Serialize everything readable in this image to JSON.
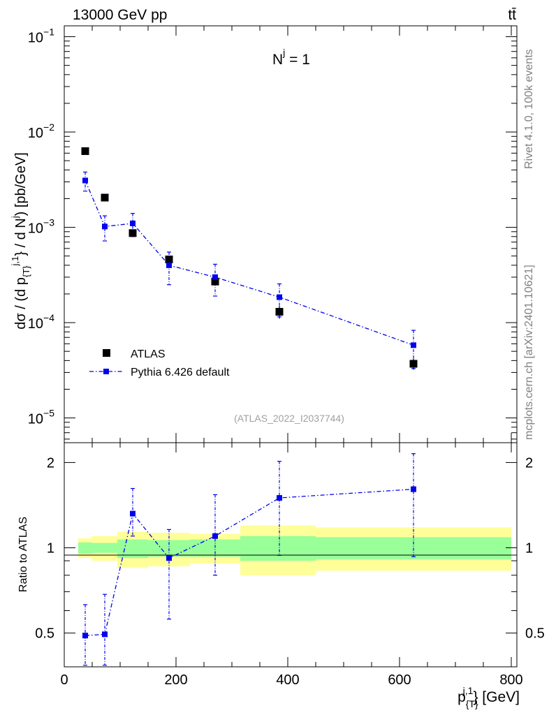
{
  "header": {
    "left": "13000 GeV pp",
    "right": "tt̄"
  },
  "side_labels": {
    "rivet": "Rivet 4.1.0,  100k events",
    "mcplots": "mcplots.cern.ch [arXiv:2401.10621]"
  },
  "chart_data": [
    {
      "type": "scatter",
      "panel": "main",
      "annotation": "N^j = 1",
      "watermark": "(ATLAS_2022_I2037744)",
      "ylabel": "dσ / (d p_{T}^{j,1} / d N^{j}) [pb/GeV]",
      "yscale": "log",
      "ylim": [
        5.5e-06,
        0.13
      ],
      "xlim": [
        0,
        810
      ],
      "ytick_labels": [
        "10^-1",
        "10^-2",
        "10^-3",
        "10^-4",
        "10^-5"
      ],
      "ytick_values": [
        0.1,
        0.01,
        0.001,
        0.0001,
        1e-05
      ],
      "legend": {
        "position": "lower-left",
        "entries": [
          "ATLAS",
          "Pythia 6.426 default"
        ]
      },
      "series": [
        {
          "name": "ATLAS",
          "color": "#000000",
          "x": [
            37.5,
            72.5,
            122.5,
            187.5,
            270,
            385,
            625
          ],
          "y": [
            0.0063,
            0.00205,
            0.00087,
            0.00046,
            0.00027,
            0.00013,
            3.7e-05
          ],
          "yerr_lo": [
            0.0004,
            0.00012,
            5e-05,
            3e-05,
            2e-05,
            2e-05,
            5e-06
          ],
          "yerr_hi": [
            0.0004,
            0.00012,
            5e-05,
            3e-05,
            2e-05,
            2e-05,
            5e-06
          ]
        },
        {
          "name": "Pythia 6.426 default",
          "color": "#0000ee",
          "x": [
            37.5,
            72.5,
            122.5,
            187.5,
            270,
            385,
            625
          ],
          "y": [
            0.0031,
            0.00102,
            0.0011,
            0.0004,
            0.0003,
            0.000185,
            5.8e-05
          ],
          "yerr_lo": [
            0.0007,
            0.0003,
            0.0003,
            0.00015,
            0.00011,
            7e-05,
            2.5e-05
          ],
          "yerr_hi": [
            0.0007,
            0.0003,
            0.0003,
            0.00015,
            0.00011,
            7e-05,
            2.5e-05
          ]
        }
      ]
    },
    {
      "type": "scatter",
      "panel": "ratio",
      "ylabel": "Ratio to ATLAS",
      "xlabel": "p_{T}^{j,1} [GeV]",
      "ylim": [
        0.38,
        2.35
      ],
      "xlim": [
        0,
        810
      ],
      "xtick_labels": [
        "0",
        "200",
        "400",
        "600",
        "800"
      ],
      "xtick_values": [
        0,
        200,
        400,
        600,
        800
      ],
      "ytick_labels": [
        "0.5",
        "1",
        "2"
      ],
      "ytick_values": [
        0.5,
        1,
        2
      ],
      "bands": [
        {
          "x0": 25,
          "x1": 50,
          "stat": [
            0.955,
            1.045
          ],
          "total": [
            0.92,
            1.08
          ]
        },
        {
          "x0": 50,
          "x1": 95,
          "stat": [
            0.96,
            1.04
          ],
          "total": [
            0.9,
            1.1
          ]
        },
        {
          "x0": 95,
          "x1": 150,
          "stat": [
            0.92,
            1.07
          ],
          "total": [
            0.85,
            1.14
          ]
        },
        {
          "x0": 150,
          "x1": 225,
          "stat": [
            0.93,
            1.065
          ],
          "total": [
            0.86,
            1.13
          ]
        },
        {
          "x0": 225,
          "x1": 315,
          "stat": [
            0.93,
            1.07
          ],
          "total": [
            0.88,
            1.12
          ]
        },
        {
          "x0": 315,
          "x1": 450,
          "stat": [
            0.9,
            1.1
          ],
          "total": [
            0.8,
            1.2
          ]
        },
        {
          "x0": 450,
          "x1": 800,
          "stat": [
            0.91,
            1.09
          ],
          "total": [
            0.83,
            1.18
          ]
        }
      ],
      "series": [
        {
          "name": "Pythia 6.426 default",
          "color": "#0000ee",
          "x": [
            37.5,
            72.5,
            122.5,
            187.5,
            270,
            385,
            625
          ],
          "y": [
            0.49,
            0.495,
            1.32,
            0.92,
            1.1,
            1.5,
            1.61
          ],
          "yerr_lo": [
            0.13,
            0.15,
            0.22,
            0.36,
            0.3,
            0.56,
            0.68
          ],
          "yerr_hi": [
            0.14,
            0.19,
            0.3,
            0.24,
            0.44,
            0.52,
            0.54
          ]
        }
      ]
    }
  ]
}
